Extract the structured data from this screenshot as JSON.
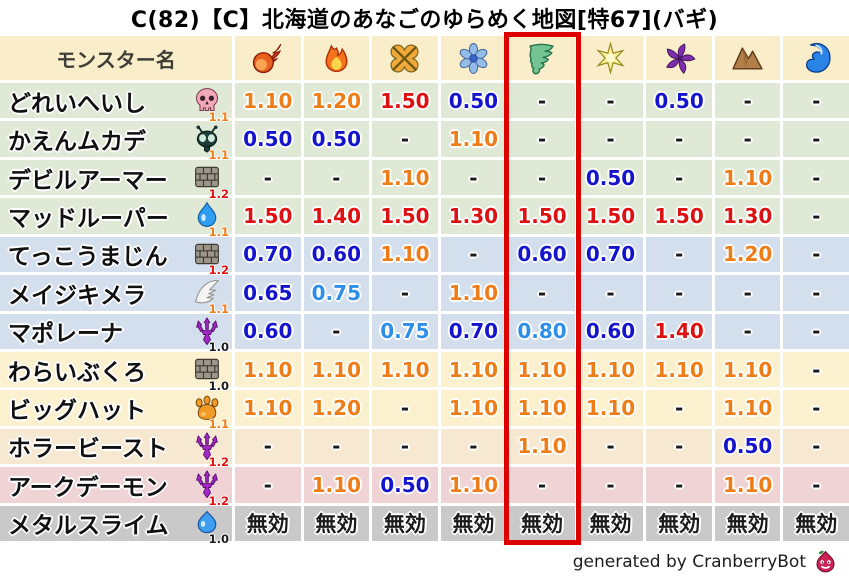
{
  "title": "C(82)【C】北海道のあなごのゆらめく地図[特67](バギ)",
  "chart_data": {
    "type": "table",
    "name_column_header": "モンスター名",
    "element_columns": [
      "fireball-icon",
      "flame-icon",
      "explosion-icon",
      "snowflake-icon",
      "tornado-icon",
      "star-icon",
      "pinwheel-icon",
      "rock-icon",
      "wave-icon"
    ],
    "highlighted_column_index": 4,
    "rows": [
      {
        "name": "どれいへいし",
        "icon": "skull-icon",
        "badge": "1.1",
        "badge_color": "orange",
        "row_color": "green",
        "values": [
          "1.10",
          "1.20",
          "1.50",
          "0.50",
          "-",
          "-",
          "0.50",
          "-",
          "-"
        ]
      },
      {
        "name": "かえんムカデ",
        "icon": "bug-icon",
        "badge": "1.1",
        "badge_color": "orange",
        "row_color": "green",
        "values": [
          "0.50",
          "0.50",
          "-",
          "1.10",
          "-",
          "-",
          "-",
          "-",
          "-"
        ]
      },
      {
        "name": "デビルアーマー",
        "icon": "brick-icon",
        "badge": "1.2",
        "badge_color": "red",
        "row_color": "green",
        "values": [
          "-",
          "-",
          "1.10",
          "-",
          "-",
          "0.50",
          "-",
          "1.10",
          "-"
        ]
      },
      {
        "name": "マッドルーパー",
        "icon": "drop-icon",
        "badge": "1.1",
        "badge_color": "orange",
        "row_color": "green",
        "values": [
          "1.50",
          "1.40",
          "1.50",
          "1.30",
          "1.50",
          "1.50",
          "1.50",
          "1.30",
          "-"
        ]
      },
      {
        "name": "てっこうまじん",
        "icon": "brick-icon",
        "badge": "1.2",
        "badge_color": "red",
        "row_color": "blue",
        "values": [
          "0.70",
          "0.60",
          "1.10",
          "-",
          "0.60",
          "0.70",
          "-",
          "1.20",
          "-"
        ]
      },
      {
        "name": "メイジキメラ",
        "icon": "wing-icon",
        "badge": "1.1",
        "badge_color": "orange",
        "row_color": "blue",
        "values": [
          "0.65",
          "0.75",
          "-",
          "1.10",
          "-",
          "-",
          "-",
          "-",
          "-"
        ]
      },
      {
        "name": "マポレーナ",
        "icon": "trident-icon",
        "badge": "1.0",
        "badge_color": "black",
        "row_color": "blue",
        "values": [
          "0.60",
          "-",
          "0.75",
          "0.70",
          "0.80",
          "0.60",
          "1.40",
          "-",
          "-"
        ]
      },
      {
        "name": "わらいぶくろ",
        "icon": "brick-icon",
        "badge": "1.0",
        "badge_color": "black",
        "row_color": "cream",
        "values": [
          "1.10",
          "1.10",
          "1.10",
          "1.10",
          "1.10",
          "1.10",
          "1.10",
          "1.10",
          "-"
        ]
      },
      {
        "name": "ビッグハット",
        "icon": "paw-icon",
        "badge": "1.1",
        "badge_color": "orange",
        "row_color": "cream",
        "values": [
          "1.10",
          "1.20",
          "-",
          "1.10",
          "1.10",
          "1.10",
          "-",
          "1.10",
          "-"
        ]
      },
      {
        "name": "ホラービースト",
        "icon": "trident-icon",
        "badge": "1.2",
        "badge_color": "red",
        "row_color": "tan",
        "values": [
          "-",
          "-",
          "-",
          "-",
          "1.10",
          "-",
          "-",
          "0.50",
          "-"
        ]
      },
      {
        "name": "アークデーモン",
        "icon": "trident-icon",
        "badge": "1.2",
        "badge_color": "red",
        "row_color": "pink",
        "values": [
          "-",
          "1.10",
          "0.50",
          "1.10",
          "-",
          "-",
          "-",
          "1.10",
          "-"
        ]
      },
      {
        "name": "メタルスライム",
        "icon": "slime-icon",
        "badge": "1.0",
        "badge_color": "black",
        "row_color": "gray",
        "values": [
          "無効",
          "無効",
          "無効",
          "無効",
          "無効",
          "無効",
          "無効",
          "無効",
          "無効"
        ]
      }
    ],
    "null_value_text": "無効",
    "dash_text": "-"
  },
  "palette": {
    "red": "#dd1111",
    "orange": "#ee7d18",
    "blue": "#1414cc",
    "lightblue": "#2e8fe8",
    "black": "#1a1a1a",
    "header_bg": "#faeeca",
    "row_green": "#dfe9d6",
    "row_blue": "#d4dfee",
    "row_cream": "#fbf1cf",
    "row_tan": "#f7e8d2",
    "row_pink": "#efd3d5",
    "row_gray": "#c9c9c9",
    "highlight_red": "#dd0000"
  },
  "footer": {
    "credit": "generated by CranberryBot",
    "icon": "cranberry-slime-icon"
  }
}
